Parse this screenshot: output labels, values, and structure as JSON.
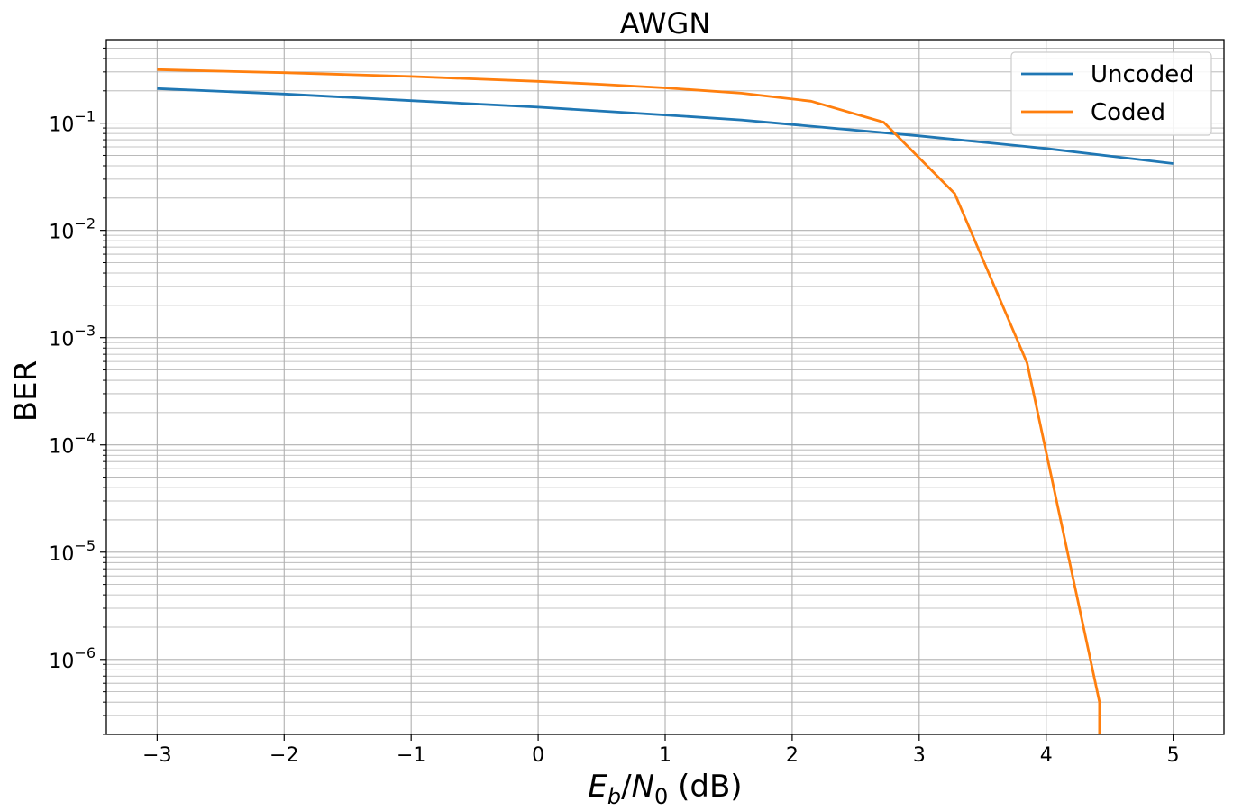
{
  "chart_data": {
    "type": "line",
    "title": "AWGN",
    "xlabel": {
      "var": "E",
      "sub1": "b",
      "sep": "/",
      "var2": "N",
      "sub2": "0",
      "unit": " (dB)"
    },
    "ylabel": "BER",
    "xlim": [
      -3.4,
      5.4
    ],
    "ylim": [
      2e-07,
      0.6
    ],
    "yscale": "log",
    "grid": true,
    "grid_minor": true,
    "legend_position": "top-right",
    "x_ticks": [
      {
        "value": -3,
        "label": "−3"
      },
      {
        "value": -2,
        "label": "−2"
      },
      {
        "value": -1,
        "label": "−1"
      },
      {
        "value": 0,
        "label": "0"
      },
      {
        "value": 1,
        "label": "1"
      },
      {
        "value": 2,
        "label": "2"
      },
      {
        "value": 3,
        "label": "3"
      },
      {
        "value": 4,
        "label": "4"
      },
      {
        "value": 5,
        "label": "5"
      }
    ],
    "y_ticks": [
      {
        "value": 0.1,
        "base": "10",
        "exp": "−1"
      },
      {
        "value": 0.01,
        "base": "10",
        "exp": "−2"
      },
      {
        "value": 0.001,
        "base": "10",
        "exp": "−3"
      },
      {
        "value": 0.0001,
        "base": "10",
        "exp": "−4"
      },
      {
        "value": 1e-05,
        "base": "10",
        "exp": "−5"
      },
      {
        "value": 1e-06,
        "base": "10",
        "exp": "−6"
      }
    ],
    "series": [
      {
        "name": "Uncoded",
        "color": "#1f77b4",
        "x": [
          -3,
          -2,
          -1,
          0,
          1,
          1.6,
          2,
          3,
          4,
          5
        ],
        "y": [
          0.21,
          0.187,
          0.162,
          0.141,
          0.119,
          0.107,
          0.097,
          0.076,
          0.058,
          0.042
        ]
      },
      {
        "name": "Coded",
        "color": "#ff7f0e",
        "x": [
          -3,
          -2,
          -1,
          0,
          0.5,
          1,
          1.6,
          2.15,
          2.72,
          3.28,
          3.85,
          4.42,
          4.42
        ],
        "y": [
          0.315,
          0.295,
          0.272,
          0.245,
          0.23,
          0.213,
          0.19,
          0.16,
          0.102,
          0.022,
          0.00058,
          4e-07,
          2e-07
        ]
      }
    ]
  }
}
